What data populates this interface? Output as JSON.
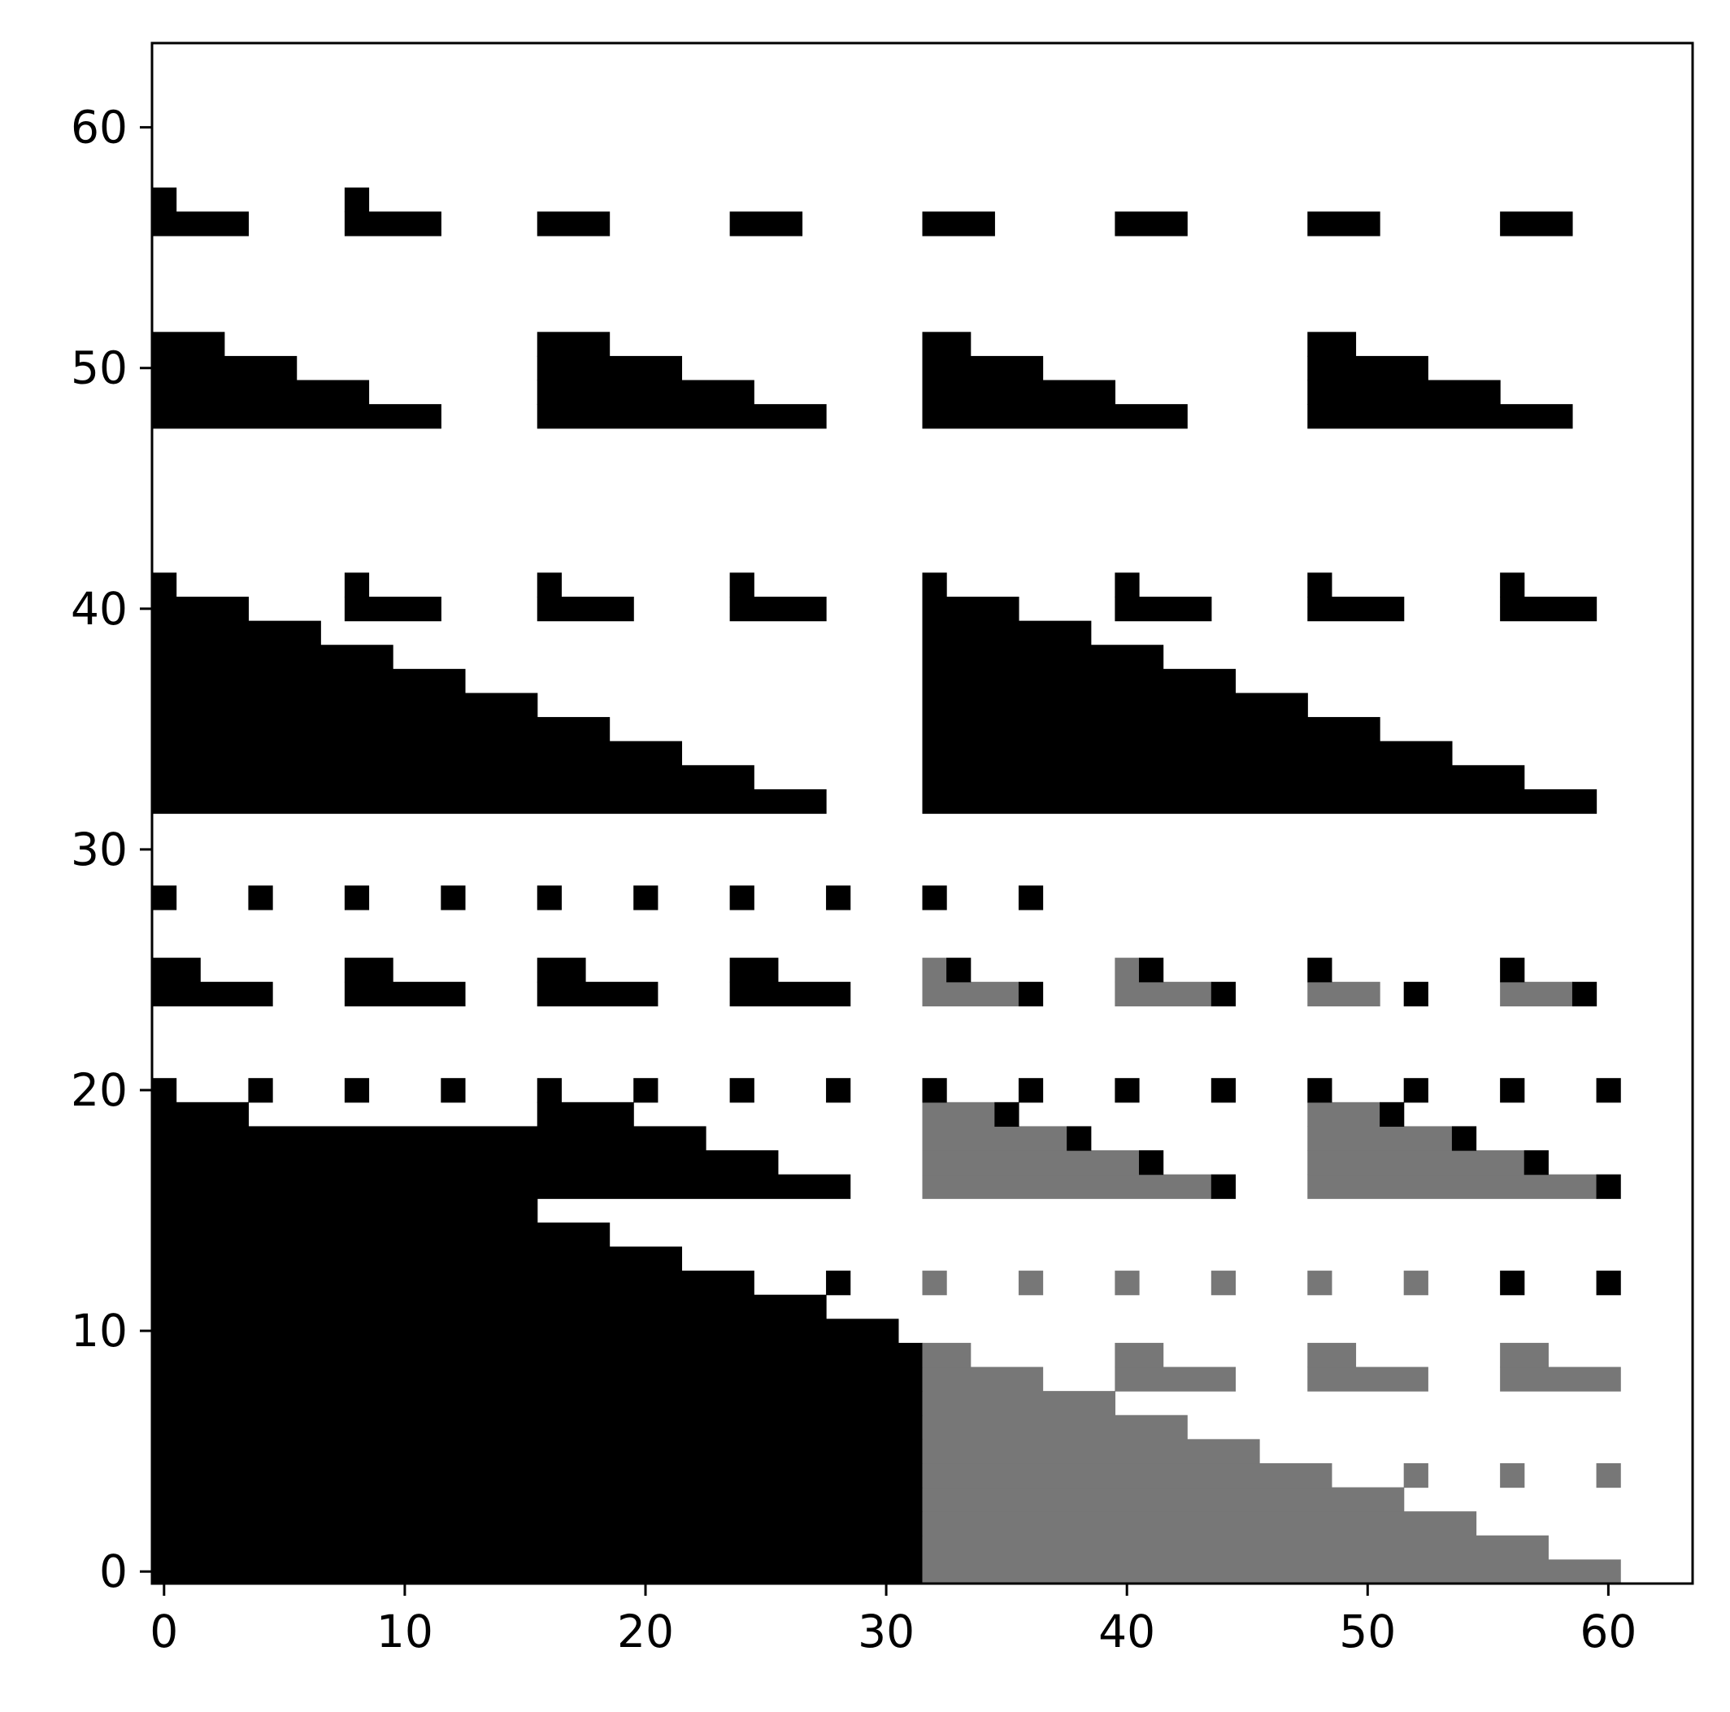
{
  "chart_data": {
    "type": "heatmap",
    "title": "",
    "xlabel": "",
    "ylabel": "",
    "xlim": [
      -0.5,
      63.5
    ],
    "ylim": [
      -0.5,
      63.5
    ],
    "origin": "lower",
    "grid": false,
    "x_ticks": [
      0,
      10,
      20,
      30,
      40,
      50,
      60
    ],
    "y_ticks": [
      0,
      10,
      20,
      30,
      40,
      50,
      60
    ],
    "x_tick_labels": [
      "0",
      "10",
      "20",
      "30",
      "40",
      "50",
      "60"
    ],
    "y_tick_labels": [
      "0",
      "10",
      "20",
      "30",
      "40",
      "50",
      "60"
    ],
    "colors": {
      "1": "#000000",
      "2": "#777777"
    },
    "cells": [
      {
        "y": 0,
        "runs": [
          [
            0,
            31,
            1
          ],
          [
            32,
            60,
            2
          ]
        ]
      },
      {
        "y": 1,
        "runs": [
          [
            0,
            31,
            1
          ],
          [
            32,
            57,
            2
          ]
        ]
      },
      {
        "y": 2,
        "runs": [
          [
            0,
            31,
            1
          ],
          [
            32,
            54,
            2
          ]
        ]
      },
      {
        "y": 3,
        "runs": [
          [
            0,
            31,
            1
          ],
          [
            32,
            51,
            2
          ]
        ]
      },
      {
        "y": 4,
        "runs": [
          [
            0,
            31,
            1
          ],
          [
            32,
            48,
            2
          ],
          [
            52,
            52,
            2
          ],
          [
            56,
            56,
            2
          ],
          [
            60,
            60,
            2
          ]
        ]
      },
      {
        "y": 5,
        "runs": [
          [
            0,
            31,
            1
          ],
          [
            32,
            45,
            2
          ]
        ]
      },
      {
        "y": 6,
        "runs": [
          [
            0,
            31,
            1
          ],
          [
            32,
            42,
            2
          ]
        ]
      },
      {
        "y": 7,
        "runs": [
          [
            0,
            31,
            1
          ],
          [
            32,
            39,
            2
          ]
        ]
      },
      {
        "y": 8,
        "runs": [
          [
            0,
            31,
            1
          ],
          [
            32,
            36,
            2
          ],
          [
            40,
            44,
            2
          ],
          [
            48,
            52,
            2
          ],
          [
            56,
            60,
            2
          ]
        ]
      },
      {
        "y": 9,
        "runs": [
          [
            0,
            31,
            1
          ],
          [
            32,
            33,
            2
          ],
          [
            40,
            41,
            2
          ],
          [
            48,
            49,
            2
          ],
          [
            56,
            57,
            2
          ]
        ]
      },
      {
        "y": 10,
        "runs": [
          [
            0,
            30,
            1
          ]
        ]
      },
      {
        "y": 11,
        "runs": [
          [
            0,
            27,
            1
          ]
        ]
      },
      {
        "y": 12,
        "runs": [
          [
            0,
            24,
            1
          ],
          [
            28,
            28,
            1
          ],
          [
            32,
            32,
            2
          ],
          [
            36,
            36,
            2
          ],
          [
            40,
            40,
            2
          ],
          [
            44,
            44,
            2
          ],
          [
            48,
            48,
            2
          ],
          [
            52,
            52,
            2
          ],
          [
            56,
            56,
            1
          ],
          [
            60,
            60,
            1
          ]
        ]
      },
      {
        "y": 13,
        "runs": [
          [
            0,
            21,
            1
          ]
        ]
      },
      {
        "y": 14,
        "runs": [
          [
            0,
            18,
            1
          ]
        ]
      },
      {
        "y": 15,
        "runs": [
          [
            0,
            15,
            1
          ]
        ]
      },
      {
        "y": 16,
        "runs": [
          [
            0,
            28,
            1
          ],
          [
            32,
            43,
            2
          ],
          [
            44,
            44,
            1
          ],
          [
            48,
            59,
            2
          ],
          [
            60,
            60,
            1
          ]
        ]
      },
      {
        "y": 17,
        "runs": [
          [
            0,
            25,
            1
          ],
          [
            32,
            40,
            2
          ],
          [
            41,
            41,
            1
          ],
          [
            48,
            56,
            2
          ],
          [
            57,
            57,
            1
          ]
        ]
      },
      {
        "y": 18,
        "runs": [
          [
            0,
            22,
            1
          ],
          [
            32,
            37,
            2
          ],
          [
            38,
            38,
            1
          ],
          [
            48,
            53,
            2
          ],
          [
            54,
            54,
            1
          ]
        ]
      },
      {
        "y": 19,
        "runs": [
          [
            0,
            3,
            1
          ],
          [
            16,
            19,
            1
          ],
          [
            32,
            34,
            2
          ],
          [
            35,
            35,
            1
          ],
          [
            48,
            50,
            2
          ],
          [
            51,
            51,
            1
          ]
        ]
      },
      {
        "y": 20,
        "runs": [
          [
            0,
            0,
            1
          ],
          [
            4,
            4,
            1
          ],
          [
            8,
            8,
            1
          ],
          [
            12,
            12,
            1
          ],
          [
            16,
            16,
            1
          ],
          [
            20,
            20,
            1
          ],
          [
            24,
            24,
            1
          ],
          [
            28,
            28,
            1
          ],
          [
            32,
            32,
            1
          ],
          [
            36,
            36,
            1
          ],
          [
            40,
            40,
            1
          ],
          [
            44,
            44,
            1
          ],
          [
            48,
            48,
            1
          ],
          [
            52,
            52,
            1
          ],
          [
            56,
            56,
            1
          ],
          [
            60,
            60,
            1
          ]
        ]
      },
      {
        "y": 24,
        "runs": [
          [
            0,
            4,
            1
          ],
          [
            8,
            12,
            1
          ],
          [
            16,
            20,
            1
          ],
          [
            24,
            28,
            1
          ],
          [
            32,
            35,
            2
          ],
          [
            36,
            36,
            1
          ],
          [
            40,
            43,
            2
          ],
          [
            44,
            44,
            1
          ],
          [
            48,
            50,
            2
          ],
          [
            52,
            52,
            1
          ],
          [
            56,
            58,
            2
          ],
          [
            59,
            59,
            1
          ]
        ]
      },
      {
        "y": 25,
        "runs": [
          [
            0,
            1,
            1
          ],
          [
            8,
            9,
            1
          ],
          [
            16,
            17,
            1
          ],
          [
            24,
            25,
            1
          ],
          [
            32,
            32,
            2
          ],
          [
            33,
            33,
            1
          ],
          [
            40,
            40,
            2
          ],
          [
            41,
            41,
            1
          ],
          [
            48,
            48,
            1
          ],
          [
            56,
            56,
            1
          ]
        ]
      },
      {
        "y": 28,
        "runs": [
          [
            0,
            0,
            1
          ],
          [
            4,
            4,
            1
          ],
          [
            8,
            8,
            1
          ],
          [
            12,
            12,
            1
          ],
          [
            16,
            16,
            1
          ],
          [
            20,
            20,
            1
          ],
          [
            24,
            24,
            1
          ],
          [
            28,
            28,
            1
          ],
          [
            32,
            32,
            1
          ],
          [
            36,
            36,
            1
          ]
        ]
      },
      {
        "y": 32,
        "runs": [
          [
            0,
            27,
            1
          ],
          [
            32,
            59,
            1
          ]
        ]
      },
      {
        "y": 33,
        "runs": [
          [
            0,
            24,
            1
          ],
          [
            32,
            56,
            1
          ]
        ]
      },
      {
        "y": 34,
        "runs": [
          [
            0,
            21,
            1
          ],
          [
            32,
            53,
            1
          ]
        ]
      },
      {
        "y": 35,
        "runs": [
          [
            0,
            18,
            1
          ],
          [
            32,
            50,
            1
          ]
        ]
      },
      {
        "y": 36,
        "runs": [
          [
            0,
            15,
            1
          ],
          [
            32,
            47,
            1
          ]
        ]
      },
      {
        "y": 37,
        "runs": [
          [
            0,
            12,
            1
          ],
          [
            32,
            44,
            1
          ]
        ]
      },
      {
        "y": 38,
        "runs": [
          [
            0,
            9,
            1
          ],
          [
            32,
            41,
            1
          ]
        ]
      },
      {
        "y": 39,
        "runs": [
          [
            0,
            6,
            1
          ],
          [
            32,
            38,
            1
          ]
        ]
      },
      {
        "y": 40,
        "runs": [
          [
            0,
            3,
            1
          ],
          [
            8,
            11,
            1
          ],
          [
            16,
            19,
            1
          ],
          [
            24,
            27,
            1
          ],
          [
            32,
            35,
            1
          ],
          [
            40,
            43,
            1
          ],
          [
            48,
            51,
            1
          ],
          [
            56,
            59,
            1
          ]
        ]
      },
      {
        "y": 41,
        "runs": [
          [
            0,
            0,
            1
          ],
          [
            8,
            8,
            1
          ],
          [
            16,
            16,
            1
          ],
          [
            24,
            24,
            1
          ],
          [
            32,
            32,
            1
          ],
          [
            40,
            40,
            1
          ],
          [
            48,
            48,
            1
          ],
          [
            56,
            56,
            1
          ]
        ]
      },
      {
        "y": 48,
        "runs": [
          [
            0,
            11,
            1
          ],
          [
            16,
            27,
            1
          ],
          [
            32,
            42,
            1
          ],
          [
            48,
            58,
            1
          ]
        ]
      },
      {
        "y": 49,
        "runs": [
          [
            0,
            8,
            1
          ],
          [
            16,
            24,
            1
          ],
          [
            32,
            39,
            1
          ],
          [
            48,
            55,
            1
          ]
        ]
      },
      {
        "y": 50,
        "runs": [
          [
            0,
            5,
            1
          ],
          [
            16,
            21,
            1
          ],
          [
            32,
            36,
            1
          ],
          [
            48,
            52,
            1
          ]
        ]
      },
      {
        "y": 51,
        "runs": [
          [
            0,
            2,
            1
          ],
          [
            16,
            18,
            1
          ],
          [
            32,
            33,
            1
          ],
          [
            48,
            49,
            1
          ]
        ]
      },
      {
        "y": 56,
        "runs": [
          [
            0,
            3,
            1
          ],
          [
            8,
            11,
            1
          ],
          [
            16,
            18,
            1
          ],
          [
            24,
            26,
            1
          ],
          [
            32,
            34,
            1
          ],
          [
            40,
            42,
            1
          ],
          [
            48,
            50,
            1
          ],
          [
            56,
            58,
            1
          ]
        ]
      },
      {
        "y": 57,
        "runs": [
          [
            0,
            0,
            1
          ],
          [
            8,
            8,
            1
          ]
        ]
      }
    ]
  }
}
